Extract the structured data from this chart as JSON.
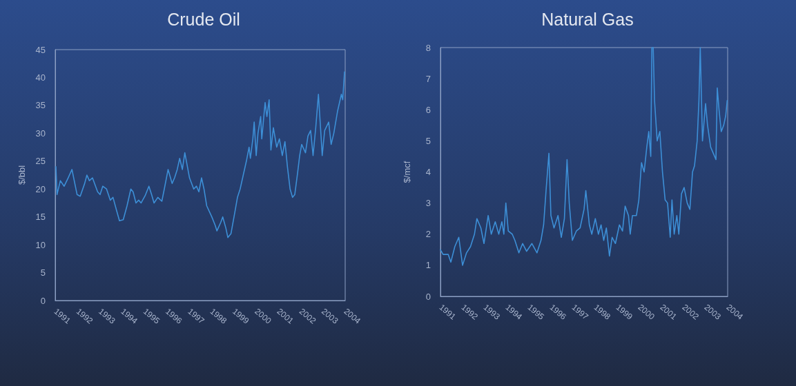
{
  "chart_data": [
    {
      "type": "line",
      "title": "Crude Oil",
      "ylabel": "$/bbl",
      "xlim": [
        1991,
        2004
      ],
      "xticks": [
        1991,
        1992,
        1993,
        1994,
        1995,
        1996,
        1997,
        1998,
        1999,
        2000,
        2001,
        2002,
        2003,
        2004
      ],
      "ylim": [
        0,
        45
      ],
      "yticks": [
        0,
        5,
        10,
        15,
        20,
        25,
        30,
        35,
        40,
        45
      ],
      "grid": false,
      "marker": "none",
      "line_style": "solid",
      "series": [
        {
          "color": "#3d8fd6",
          "x": [
            1991.03,
            1991.08,
            1991.23,
            1991.4,
            1991.58,
            1991.75,
            1991.98,
            1992.12,
            1992.32,
            1992.42,
            1992.53,
            1992.67,
            1992.9,
            1993.01,
            1993.13,
            1993.3,
            1993.47,
            1993.59,
            1993.76,
            1993.88,
            1994.05,
            1994.22,
            1994.39,
            1994.49,
            1994.62,
            1994.74,
            1994.85,
            1995.03,
            1995.2,
            1995.32,
            1995.43,
            1995.6,
            1995.78,
            1995.89,
            1996.06,
            1996.24,
            1996.35,
            1996.47,
            1996.58,
            1996.7,
            1996.81,
            1997.02,
            1997.21,
            1997.33,
            1997.44,
            1997.56,
            1997.67,
            1997.79,
            1998.02,
            1998.17,
            1998.25,
            1998.42,
            1998.51,
            1998.65,
            1998.74,
            1998.88,
            1999.06,
            1999.17,
            1999.29,
            1999.43,
            1999.57,
            1999.69,
            1999.75,
            1999.86,
            1999.92,
            2000.01,
            2000.09,
            2000.21,
            2000.26,
            2000.41,
            2000.49,
            2000.59,
            2000.67,
            2000.78,
            2000.93,
            2001.05,
            2001.18,
            2001.3,
            2001.41,
            2001.53,
            2001.64,
            2001.74,
            2001.87,
            2001.96,
            2002.05,
            2002.22,
            2002.33,
            2002.45,
            2002.56,
            2002.68,
            2002.8,
            2002.91,
            2002.97,
            2003.08,
            2003.26,
            2003.37,
            2003.49,
            2003.66,
            2003.83,
            2003.89,
            2003.97
          ],
          "values": [
            24,
            19,
            21.5,
            20.5,
            22,
            23.5,
            19,
            18.7,
            21,
            22.5,
            21.5,
            22,
            19.5,
            19,
            20.5,
            20,
            18,
            18.5,
            16,
            14.3,
            14.5,
            17,
            20,
            19.5,
            17.5,
            18,
            17.5,
            18.8,
            20.5,
            19,
            17.5,
            18.5,
            17.8,
            20,
            23.5,
            21,
            22,
            23.5,
            25.5,
            23.5,
            26.5,
            22,
            20,
            20.5,
            19.5,
            22,
            20,
            17,
            15,
            13.5,
            12.5,
            14,
            15,
            13,
            11.3,
            12,
            16,
            18.5,
            20,
            22.5,
            25,
            27.5,
            25.5,
            29,
            32,
            26,
            30,
            33,
            29,
            35.5,
            33,
            36,
            27,
            31,
            27.5,
            29,
            26,
            28.5,
            24,
            20,
            18.5,
            19,
            23,
            26,
            28,
            26.5,
            29.5,
            30.5,
            26,
            31,
            37,
            30,
            26,
            30.5,
            32,
            28,
            30,
            34,
            37,
            36,
            41
          ]
        }
      ]
    },
    {
      "type": "line",
      "title": "Natural Gas",
      "ylabel": "$/mcf",
      "xlim": [
        1991,
        2004
      ],
      "xticks": [
        1991,
        1992,
        1993,
        1994,
        1995,
        1996,
        1997,
        1998,
        1999,
        2000,
        2001,
        2002,
        2003,
        2004
      ],
      "ylim": [
        0,
        8
      ],
      "yticks": [
        0,
        1,
        2,
        3,
        4,
        5,
        6,
        7,
        8
      ],
      "grid": false,
      "marker": "none",
      "line_style": "solid",
      "series": [
        {
          "color": "#3d8fd6",
          "x": [
            1991.0,
            1991.12,
            1991.35,
            1991.47,
            1991.65,
            1991.83,
            1992.0,
            1992.18,
            1992.36,
            1992.54,
            1992.65,
            1992.83,
            1992.97,
            1993.16,
            1993.3,
            1993.48,
            1993.64,
            1993.78,
            1993.87,
            1993.96,
            1994.07,
            1994.25,
            1994.37,
            1994.55,
            1994.72,
            1994.9,
            1995.14,
            1995.37,
            1995.55,
            1995.67,
            1995.79,
            1995.91,
            1996.0,
            1996.14,
            1996.32,
            1996.47,
            1996.61,
            1996.73,
            1996.83,
            1996.97,
            1997.15,
            1997.32,
            1997.5,
            1997.58,
            1997.74,
            1997.85,
            1998.01,
            1998.15,
            1998.27,
            1998.39,
            1998.51,
            1998.65,
            1998.77,
            1998.92,
            1999.1,
            1999.24,
            1999.36,
            1999.51,
            1999.59,
            1999.69,
            1999.87,
            1999.98,
            2000.1,
            2000.22,
            2000.34,
            2000.43,
            2000.52,
            2000.57,
            2000.63,
            2000.69,
            2000.81,
            2000.93,
            2001.05,
            2001.17,
            2001.28,
            2001.4,
            2001.48,
            2001.58,
            2001.7,
            2001.79,
            2001.91,
            2002.03,
            2002.17,
            2002.29,
            2002.41,
            2002.5,
            2002.62,
            2002.7,
            2002.76,
            2002.86,
            2003.0,
            2003.09,
            2003.23,
            2003.35,
            2003.47,
            2003.53,
            2003.61,
            2003.71,
            2003.82,
            2003.91,
            2003.98
          ],
          "values": [
            1.5,
            1.35,
            1.35,
            1.1,
            1.6,
            1.9,
            1.0,
            1.4,
            1.6,
            2.0,
            2.5,
            2.2,
            1.7,
            2.6,
            2.0,
            2.4,
            2.0,
            2.4,
            2.0,
            3.0,
            2.1,
            2.0,
            1.8,
            1.4,
            1.7,
            1.45,
            1.7,
            1.4,
            1.8,
            2.3,
            3.5,
            4.6,
            2.6,
            2.2,
            2.6,
            1.9,
            2.5,
            4.4,
            3.0,
            1.8,
            2.1,
            2.2,
            2.8,
            3.4,
            2.3,
            2.0,
            2.5,
            2.0,
            2.3,
            1.8,
            2.2,
            1.3,
            1.9,
            1.7,
            2.3,
            2.1,
            2.9,
            2.6,
            2.0,
            2.6,
            2.6,
            3.1,
            4.3,
            4.0,
            4.8,
            5.3,
            4.5,
            8,
            8,
            6.3,
            5.0,
            5.3,
            4.0,
            3.1,
            3.0,
            1.9,
            3.1,
            2.0,
            2.6,
            2.0,
            3.3,
            3.5,
            3.0,
            2.8,
            4.0,
            4.2,
            5.0,
            6.3,
            8,
            5.0,
            6.2,
            5.5,
            4.8,
            4.6,
            4.4,
            6.7,
            6.0,
            5.3,
            5.5,
            5.8,
            6.3
          ]
        }
      ]
    }
  ]
}
